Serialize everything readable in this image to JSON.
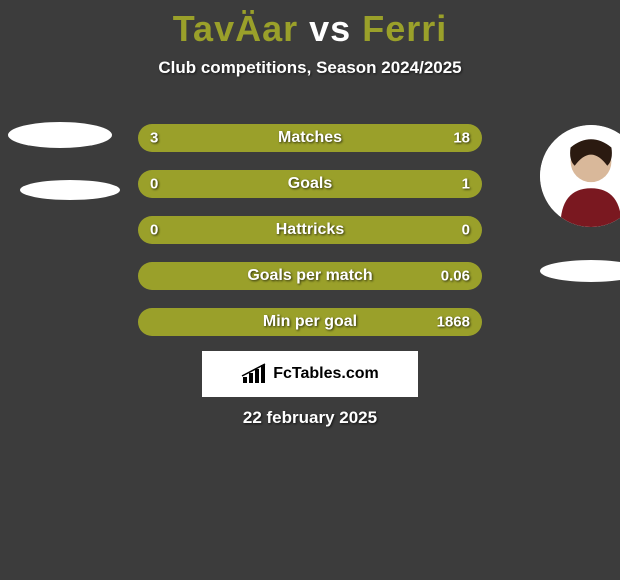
{
  "title": {
    "player1": "TavÄar",
    "vs": "vs",
    "player2": "Ferri",
    "color1": "#9aa02a",
    "color_vs": "#ffffff",
    "color2": "#9aa02a"
  },
  "subtitle": "Club competitions, Season 2024/2025",
  "bars": {
    "color_left": "#9aa02a",
    "color_right": "#9aa02a",
    "track_half": "50%",
    "rows": [
      {
        "label": "Matches",
        "left_val": "3",
        "right_val": "18",
        "left_pct": 24,
        "right_pct": 76
      },
      {
        "label": "Goals",
        "left_val": "0",
        "right_val": "1",
        "left_pct": 8,
        "right_pct": 92
      },
      {
        "label": "Hattricks",
        "left_val": "0",
        "right_val": "0",
        "left_pct": 50,
        "right_pct": 50
      },
      {
        "label": "Goals per match",
        "left_val": "",
        "right_val": "0.06",
        "left_pct": 50,
        "right_pct": 50
      },
      {
        "label": "Min per goal",
        "left_val": "",
        "right_val": "1868",
        "left_pct": 50,
        "right_pct": 50
      }
    ]
  },
  "logo_text": "FcTables.com",
  "date": "22 february 2025",
  "colors": {
    "background": "#3c3c3c",
    "white": "#ffffff",
    "black": "#000000"
  }
}
